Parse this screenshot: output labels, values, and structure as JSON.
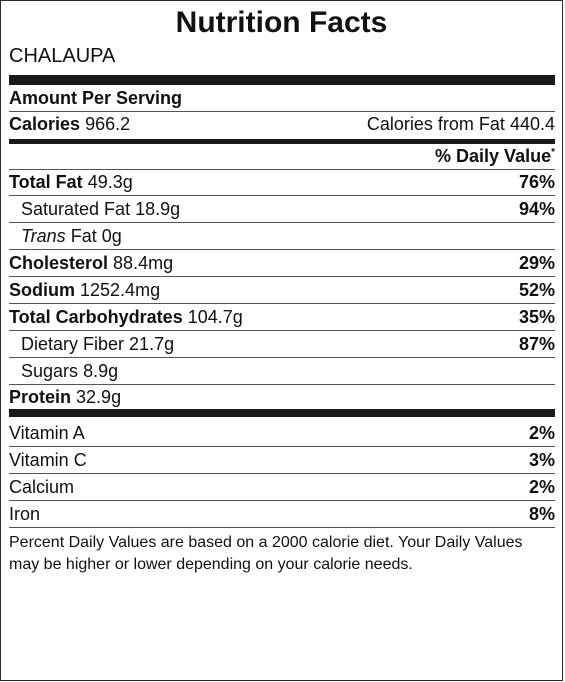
{
  "title": "Nutrition Facts",
  "food_name": "CHALAUPA",
  "amount_per_serving": "Amount Per Serving",
  "calories": {
    "label": "Calories",
    "value": "966.2",
    "from_fat_label": "Calories from Fat",
    "from_fat_value": "440.4"
  },
  "daily_value_header": "% Daily Value",
  "daily_value_mark": "*",
  "nutrients": {
    "total_fat": {
      "label": "Total Fat",
      "amount": "49.3g",
      "dv": "76%"
    },
    "saturated_fat": {
      "label": "Saturated Fat",
      "amount": "18.9g",
      "dv": "94%"
    },
    "trans_fat": {
      "label_italic": "Trans",
      "label": "Fat",
      "amount": "0g"
    },
    "cholesterol": {
      "label": "Cholesterol",
      "amount": "88.4mg",
      "dv": "29%"
    },
    "sodium": {
      "label": "Sodium",
      "amount": "1252.4mg",
      "dv": "52%"
    },
    "total_carbohydrates": {
      "label": "Total Carbohydrates",
      "amount": "104.7g",
      "dv": "35%"
    },
    "dietary_fiber": {
      "label": "Dietary Fiber",
      "amount": "21.7g",
      "dv": "87%"
    },
    "sugars": {
      "label": "Sugars",
      "amount": "8.9g"
    },
    "protein": {
      "label": "Protein",
      "amount": "32.9g"
    }
  },
  "vitamins": {
    "vitamin_a": {
      "label": "Vitamin A",
      "dv": "2%"
    },
    "vitamin_c": {
      "label": "Vitamin C",
      "dv": "3%"
    },
    "calcium": {
      "label": "Calcium",
      "dv": "2%"
    },
    "iron": {
      "label": "Iron",
      "dv": "8%"
    }
  },
  "footnote": "Percent Daily Values are based on a 2000 calorie diet. Your Daily Values may be higher or lower depending on your calorie needs."
}
